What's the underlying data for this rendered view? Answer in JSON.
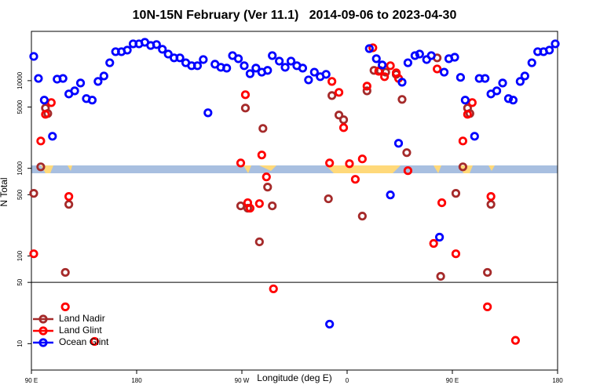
{
  "chart_data": {
    "type": "scatter",
    "title": "10N-15N February (Ver 11.1)   2014-09-06 to 2023-04-30",
    "xlabel": "Longitude (deg E)",
    "ylabel": "N Total",
    "log_y": true,
    "legend": "bottom-left",
    "hline": 50,
    "xlim": [
      90,
      540
    ],
    "xticks": [
      {
        "value": 90,
        "label": "90 E"
      },
      180,
      {
        "value": 270,
        "label": "90 W"
      },
      {
        "value": 360,
        "label": "0"
      },
      {
        "value": 450,
        "label": "90 E"
      },
      {
        "value": 540,
        "label": "180"
      }
    ],
    "ylim": [
      5,
      36500
    ],
    "yticks": [
      10,
      50,
      100,
      500,
      1000,
      5000,
      10000
    ],
    "series": [
      {
        "name": "Land Nadir",
        "color": "#a52a2a",
        "x": [
          92,
          98,
          102,
          104,
          119,
          122,
          269,
          273,
          275,
          285,
          288,
          292,
          296,
          344,
          347,
          353,
          357,
          373,
          377,
          383,
          388,
          393,
          402,
          407,
          411,
          437,
          440,
          453,
          459,
          463,
          465,
          480,
          483
        ],
        "values": [
          518,
          1040,
          4870,
          4220,
          65,
          388,
          373,
          4870,
          351,
          145,
          2850,
          611,
          373,
          449,
          6760,
          4050,
          3580,
          285,
          7650,
          13100,
          13100,
          12500,
          11800,
          6110,
          1510,
          18200,
          58.6,
          518,
          1040,
          4870,
          4220,
          65,
          388
        ]
      },
      {
        "name": "Land Glint",
        "color": "#ff0000",
        "x": [
          92,
          98,
          102,
          107,
          119,
          122,
          144,
          269,
          273,
          275,
          277,
          285,
          287,
          291,
          297,
          345,
          347,
          353,
          357,
          362,
          367,
          373,
          377,
          382,
          387,
          392,
          397,
          402,
          404,
          412,
          434,
          437,
          441,
          453,
          459,
          463,
          467,
          480,
          483,
          504
        ],
        "values": [
          106,
          2050,
          4130,
          5620,
          26.3,
          477,
          10.6,
          1150,
          6910,
          405,
          351,
          396,
          1420,
          798,
          42.2,
          1150,
          9800,
          7350,
          2910,
          1130,
          750,
          1280,
          8660,
          23700,
          12800,
          11100,
          14800,
          12300,
          10600,
          940,
          139,
          13600,
          405,
          106,
          2050,
          4130,
          5620,
          26.3,
          477,
          10.9
        ]
      },
      {
        "name": "Ocean Glint",
        "color": "#0000ff",
        "x": [
          92,
          96,
          101,
          108,
          112,
          117,
          122,
          127,
          132,
          137,
          142,
          147,
          152,
          157,
          162,
          167,
          172,
          177,
          182,
          187,
          192,
          197,
          202,
          207,
          212,
          217,
          222,
          227,
          232,
          237,
          241,
          247,
          252,
          257,
          262,
          267,
          272,
          277,
          282,
          287,
          292,
          296,
          302,
          307,
          312,
          317,
          322,
          327,
          332,
          337,
          342,
          345,
          379,
          385,
          390,
          397,
          404,
          407,
          412,
          418,
          422,
          428,
          432,
          439,
          443,
          447,
          452,
          457,
          461,
          469,
          473,
          478,
          483,
          488,
          493,
          498,
          502,
          508,
          512,
          518,
          523,
          528,
          533,
          538
        ],
        "values": [
          18900,
          10600,
          6000,
          2320,
          10400,
          10600,
          7050,
          7650,
          9400,
          6240,
          6000,
          9800,
          11300,
          16000,
          21400,
          21400,
          22300,
          26300,
          26300,
          27400,
          25200,
          25800,
          22800,
          20100,
          18200,
          18200,
          16000,
          14800,
          14800,
          17400,
          4300,
          15400,
          14200,
          13900,
          19300,
          17800,
          14800,
          12000,
          13900,
          12500,
          13100,
          19300,
          16700,
          14200,
          16700,
          14800,
          13900,
          10200,
          12500,
          11100,
          11800,
          16.7,
          23200,
          17800,
          15100,
          497,
          1930,
          9600,
          16000,
          19300,
          20100,
          17400,
          19300,
          164,
          12500,
          17800,
          18500,
          10900,
          6000,
          2320,
          10600,
          10600,
          7050,
          7650,
          9400,
          6240,
          6000,
          9800,
          11300,
          16000,
          21400,
          21400,
          22300,
          26300
        ]
      }
    ]
  }
}
